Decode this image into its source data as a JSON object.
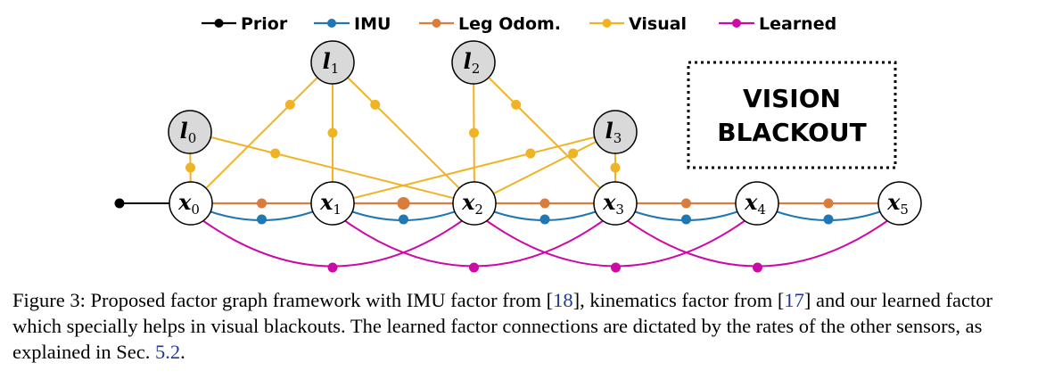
{
  "legend": [
    {
      "label": "Prior",
      "color": "#000000"
    },
    {
      "label": "IMU",
      "color": "#1f77b4"
    },
    {
      "label": "Leg Odom.",
      "color": "#d97c3c"
    },
    {
      "label": "Visual",
      "color": "#f0b323"
    },
    {
      "label": "Learned",
      "color": "#cc0aa6"
    }
  ],
  "poses": [
    {
      "var": "x",
      "sub": "0"
    },
    {
      "var": "x",
      "sub": "1"
    },
    {
      "var": "x",
      "sub": "2"
    },
    {
      "var": "x",
      "sub": "3"
    },
    {
      "var": "x",
      "sub": "4"
    },
    {
      "var": "x",
      "sub": "5"
    }
  ],
  "landmarks": [
    {
      "var": "l",
      "sub": "0"
    },
    {
      "var": "l",
      "sub": "1"
    },
    {
      "var": "l",
      "sub": "2"
    },
    {
      "var": "l",
      "sub": "3"
    }
  ],
  "visual_factors": [
    [
      0,
      0
    ],
    [
      0,
      2
    ],
    [
      1,
      0
    ],
    [
      1,
      1
    ],
    [
      1,
      2
    ],
    [
      2,
      2
    ],
    [
      2,
      3
    ],
    [
      3,
      1
    ],
    [
      3,
      2
    ],
    [
      3,
      3
    ]
  ],
  "learned_factors": [
    [
      0,
      2
    ],
    [
      1,
      3
    ],
    [
      2,
      4
    ],
    [
      3,
      5
    ]
  ],
  "blackout": {
    "line1": "VISION",
    "line2": "BLACKOUT"
  },
  "caption": {
    "part1": "Figure 3: Proposed factor graph framework with IMU factor from [",
    "ref1": "18",
    "part2": "], kinematics factor from [",
    "ref2": "17",
    "part3": "] and our learned factor which specially helps in visual blackouts. The learned factor connections are dictated by the rates of the other sensors, as explained in Sec. ",
    "ref3": "5.2",
    "part4": "."
  },
  "colors": {
    "prior": "#000000",
    "imu": "#1f77b4",
    "leg": "#d97c3c",
    "visual": "#f0b323",
    "learned": "#cc0aa6",
    "landmark_fill": "#d9d9d9"
  }
}
